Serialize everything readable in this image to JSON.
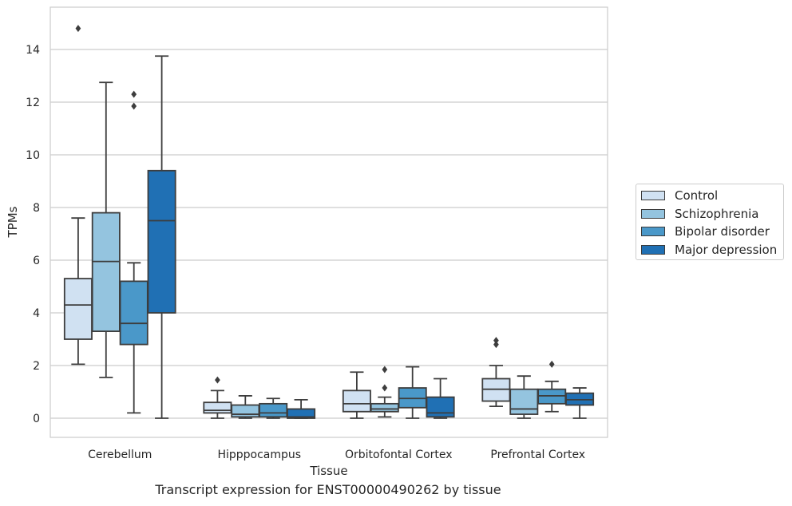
{
  "chart_data": {
    "type": "box",
    "title": "Transcript expression for ENST00000490262 by tissue",
    "xlabel": "Tissue",
    "ylabel": "TPMs",
    "ylim": [
      -0.7,
      15.4
    ],
    "yticks": [
      0,
      2,
      4,
      6,
      8,
      10,
      12,
      14
    ],
    "grid": "horizontal",
    "legend_position": "right",
    "categories": [
      "Cerebellum",
      "Hipppocampus",
      "Orbitofontal Cortex",
      "Prefrontal Cortex"
    ],
    "series": [
      {
        "name": "Control",
        "color": "#d0e1f2",
        "boxes": [
          {
            "min": 2.05,
            "q1": 3.0,
            "median": 4.3,
            "q3": 5.3,
            "max": 7.6,
            "outliers": [
              14.8
            ]
          },
          {
            "min": 0.0,
            "q1": 0.2,
            "median": 0.3,
            "q3": 0.6,
            "max": 1.05,
            "outliers": [
              1.45
            ]
          },
          {
            "min": 0.0,
            "q1": 0.25,
            "median": 0.55,
            "q3": 1.05,
            "max": 1.75,
            "outliers": []
          },
          {
            "min": 0.45,
            "q1": 0.65,
            "median": 1.1,
            "q3": 1.5,
            "max": 2.0,
            "outliers": [
              2.8,
              2.95
            ]
          }
        ]
      },
      {
        "name": "Schizophrenia",
        "color": "#94c4df",
        "boxes": [
          {
            "min": 1.55,
            "q1": 3.3,
            "median": 5.95,
            "q3": 7.8,
            "max": 12.75,
            "outliers": []
          },
          {
            "min": 0.0,
            "q1": 0.05,
            "median": 0.15,
            "q3": 0.5,
            "max": 0.85,
            "outliers": []
          },
          {
            "min": 0.05,
            "q1": 0.25,
            "median": 0.35,
            "q3": 0.55,
            "max": 0.8,
            "outliers": [
              1.15,
              1.85
            ]
          },
          {
            "min": 0.0,
            "q1": 0.15,
            "median": 0.35,
            "q3": 1.1,
            "max": 1.6,
            "outliers": []
          }
        ]
      },
      {
        "name": "Bipolar disorder",
        "color": "#4a98c9",
        "boxes": [
          {
            "min": 0.2,
            "q1": 2.8,
            "median": 3.6,
            "q3": 5.2,
            "max": 5.9,
            "outliers": [
              11.85,
              12.3
            ]
          },
          {
            "min": 0.0,
            "q1": 0.05,
            "median": 0.2,
            "q3": 0.55,
            "max": 0.75,
            "outliers": []
          },
          {
            "min": 0.0,
            "q1": 0.4,
            "median": 0.75,
            "q3": 1.15,
            "max": 1.95,
            "outliers": []
          },
          {
            "min": 0.25,
            "q1": 0.55,
            "median": 0.85,
            "q3": 1.1,
            "max": 1.4,
            "outliers": [
              2.05
            ]
          }
        ]
      },
      {
        "name": "Major depression",
        "color": "#2070b4",
        "boxes": [
          {
            "min": 0.0,
            "q1": 4.0,
            "median": 7.5,
            "q3": 9.4,
            "max": 13.75,
            "outliers": []
          },
          {
            "min": 0.0,
            "q1": 0.0,
            "median": 0.05,
            "q3": 0.35,
            "max": 0.7,
            "outliers": []
          },
          {
            "min": 0.0,
            "q1": 0.05,
            "median": 0.2,
            "q3": 0.8,
            "max": 1.5,
            "outliers": []
          },
          {
            "min": 0.0,
            "q1": 0.5,
            "median": 0.7,
            "q3": 0.95,
            "max": 1.15,
            "outliers": []
          }
        ]
      }
    ]
  }
}
